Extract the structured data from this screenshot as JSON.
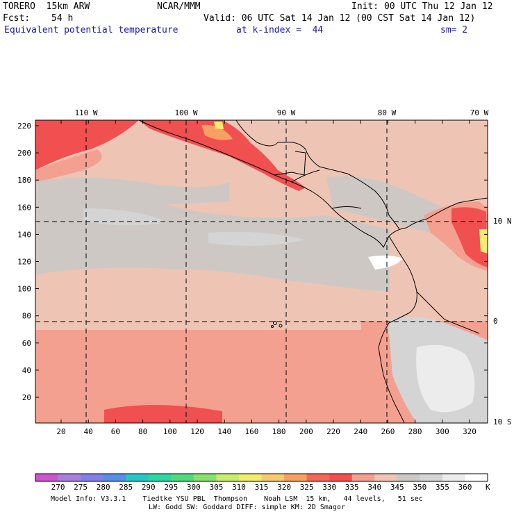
{
  "header": {
    "model": "TORERO  15km ARW",
    "org": "NCAR/MMM",
    "init": "Init: 00 UTC Thu 12 Jan 12",
    "fcst_label": "Fcst:",
    "fcst_value": "54 h",
    "valid": "Valid: 06 UTC Sat 14 Jan 12 (00 CST Sat 14 Jan 12)",
    "field": "Equivalent potential temperature",
    "level": "at k-index =  44",
    "smooth": "sm= 2"
  },
  "map": {
    "top_lon_labels": [
      "110 W",
      "100 W",
      "90 W",
      "80 W",
      "70 W"
    ],
    "right_lat_labels": [
      "10 N",
      "0",
      "10 S"
    ],
    "left_ticks": [
      "220",
      "200",
      "180",
      "160",
      "140",
      "120",
      "100",
      "80",
      "60",
      "40",
      "20"
    ],
    "bottom_ticks": [
      "20",
      "40",
      "60",
      "80",
      "100",
      "120",
      "140",
      "160",
      "180",
      "200",
      "220",
      "240",
      "260",
      "280",
      "300",
      "320"
    ]
  },
  "colorbar": {
    "labels": [
      "270",
      "275",
      "280",
      "285",
      "290",
      "295",
      "300",
      "305",
      "310",
      "315",
      "320",
      "325",
      "330",
      "335",
      "340",
      "345",
      "350",
      "355",
      "360"
    ],
    "unit": "K",
    "colors": [
      "#cc55cc",
      "#a97fd8",
      "#8080e8",
      "#5a8ee6",
      "#2bc4c4",
      "#2ed6a0",
      "#53d880",
      "#88e070",
      "#c8ec70",
      "#f2ec70",
      "#f6ca72",
      "#f6a064",
      "#f26858",
      "#f05050",
      "#f4a090",
      "#eec4b4",
      "#cdc8c4",
      "#d4d4d4",
      "#ececec",
      "#ffffff"
    ]
  },
  "footer": {
    "line1": "Model Info: V3.3.1    Tiedtke YSU PBL  Thompson    Noah LSM  15 km,   44 levels,   51 sec",
    "line2": "LW: Godd SW: Goddard DIFF: simple KM: 2D Smagor"
  }
}
